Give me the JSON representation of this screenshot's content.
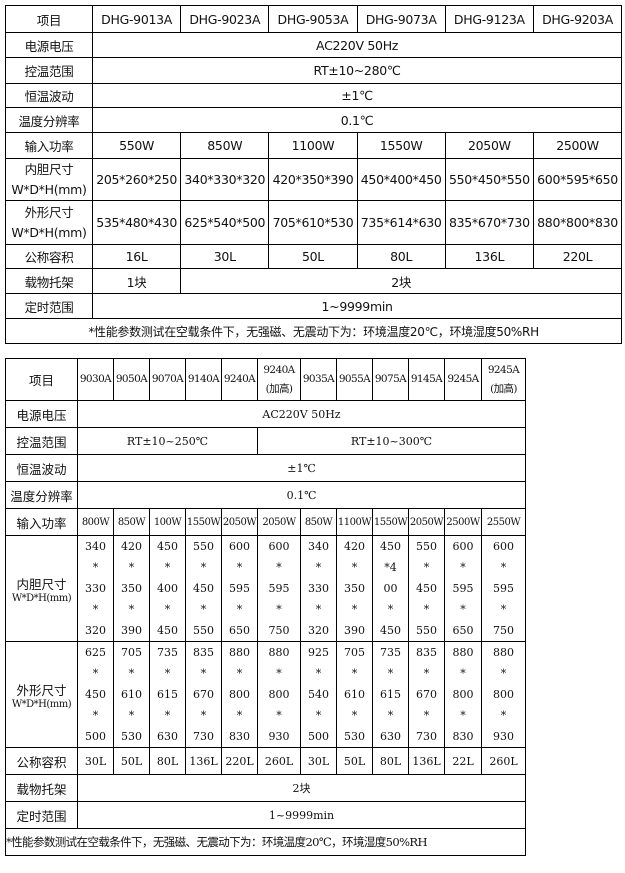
{
  "table1": {
    "header_label": "项目",
    "models": [
      "DHG-9013A",
      "DHG-9023A",
      "DHG-9053A",
      "DHG-9073A",
      "DHG-9123A",
      "DHG-9203A"
    ],
    "voltage": {
      "label": "电源电压",
      "value": "AC220V 50Hz"
    },
    "temp_range": {
      "label": "控温范围",
      "value": "RT±10~280℃"
    },
    "fluctuation": {
      "label": "恒温波动",
      "value": "±1℃"
    },
    "resolution": {
      "label": "温度分辨率",
      "value": "0.1℃"
    },
    "power": {
      "label": "输入功率",
      "values": [
        "550W",
        "850W",
        "1100W",
        "1550W",
        "2050W",
        "2500W"
      ]
    },
    "inner_size": {
      "label": "内胆尺寸\nW*D*H(mm)",
      "values": [
        "205*260*250",
        "340*330*320",
        "420*350*390",
        "450*400*450",
        "550*450*550",
        "600*595*650"
      ]
    },
    "outer_size": {
      "label": "外形尺寸\nW*D*H(mm)",
      "values": [
        "535*480*430",
        "625*540*500",
        "705*610*530",
        "735*614*630",
        "835*670*730",
        "880*800*830"
      ]
    },
    "capacity": {
      "label": "公称容积",
      "values": [
        "16L",
        "30L",
        "50L",
        "80L",
        "136L",
        "220L"
      ]
    },
    "shelves": {
      "label": "载物托架",
      "first": "1块",
      "rest": "2块"
    },
    "timer": {
      "label": "定时范围",
      "value": "1~9999min"
    },
    "note": "*性能参数测试在空载条件下，无强磁、无震动下为：环境温度20℃，环境湿度50%RH"
  },
  "table2": {
    "header_label": "项目",
    "models": [
      "9030A",
      "9050A",
      "9070A",
      "9140A",
      "9240A",
      "9240A\n(加高)",
      "9035A",
      "9055A",
      "9075A",
      "9145A",
      "9245A",
      "9245A\n(加高)"
    ],
    "voltage": {
      "label": "电源电压",
      "value": "AC220V 50Hz"
    },
    "temp_range": {
      "label": "控温范围",
      "value_a": "RT±10~250℃",
      "value_b": "RT±10~300℃"
    },
    "fluctuation": {
      "label": "恒温波动",
      "value": "±1℃"
    },
    "resolution": {
      "label": "温度分辨率",
      "value": "0.1℃"
    },
    "power": {
      "label": "输入功率",
      "values": [
        "800W",
        "850W",
        "100W",
        "1550W",
        "2050W",
        "2050W",
        "850W",
        "1100W",
        "1550W",
        "2050W",
        "2500W",
        "2550W"
      ]
    },
    "inner_size": {
      "label": "内胆尺寸",
      "sublabel": "W*D*H(mm)",
      "values": [
        "340\n*\n330\n*\n320",
        "420\n*\n350\n*\n390",
        "450\n*\n400\n*\n450",
        "550\n*\n450\n*\n550",
        "600\n*\n595\n*\n650",
        "600\n*\n595\n*\n750",
        "340\n*\n330\n*\n320",
        "420\n*\n350\n*\n390",
        "450\n*4\n00\n*\n450",
        "550\n*\n450\n*\n550",
        "600\n*\n595\n*\n650",
        "600\n*\n595\n*\n750"
      ]
    },
    "outer_size": {
      "label": "外形尺寸",
      "sublabel": "W*D*H(mm)",
      "values": [
        "625\n*\n450\n*\n500",
        "705\n*\n610\n*\n530",
        "735\n*\n615\n*\n630",
        "835\n*\n670\n*\n730",
        "880\n*\n800\n*\n830",
        "880\n*\n800\n*\n930",
        "925\n*\n540\n*\n500",
        "705\n*\n610\n*\n530",
        "735\n*\n615\n*\n630",
        "835\n*\n670\n*\n730",
        "880\n*\n800\n*\n830",
        "880\n*\n800\n*\n930"
      ]
    },
    "capacity": {
      "label": "公称容积",
      "values": [
        "30L",
        "50L",
        "80L",
        "136L",
        "220L",
        "260L",
        "30L",
        "50L",
        "80L",
        "136L",
        "22L",
        "260L"
      ]
    },
    "shelves": {
      "label": "载物托架",
      "value": "2块"
    },
    "timer": {
      "label": "定时范围",
      "value": "1~9999min"
    },
    "note": "*性能参数测试在空载条件下，无强磁、无震动下为：环境温度20℃，环境湿度50%RH"
  }
}
